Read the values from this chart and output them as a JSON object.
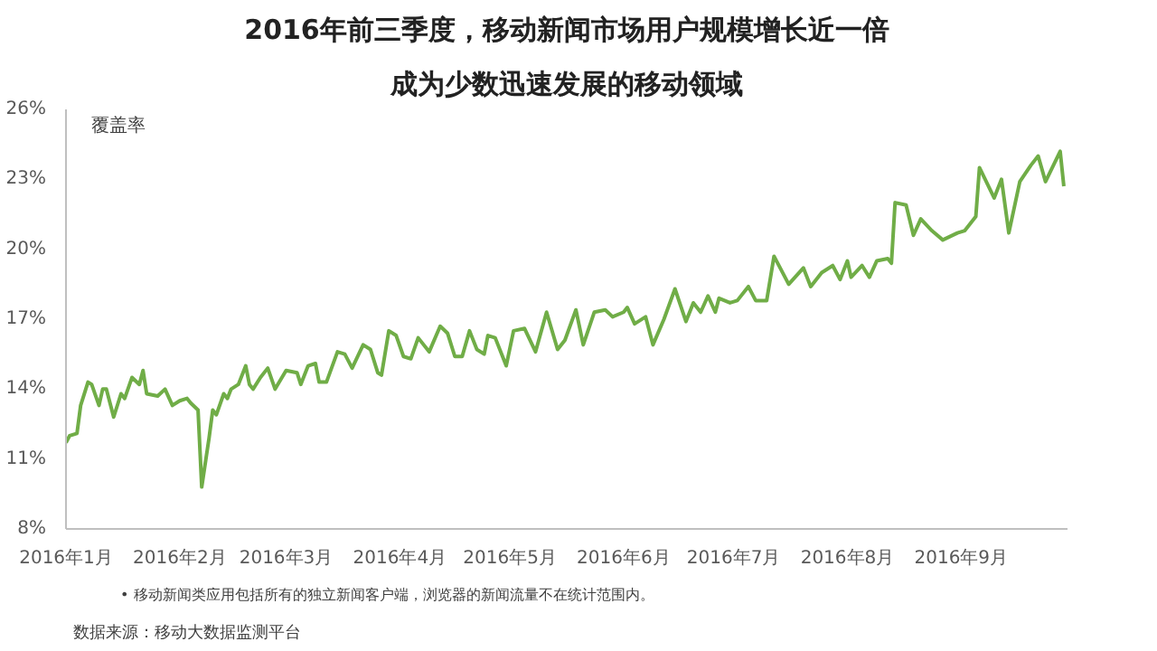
{
  "chart_data": {
    "type": "line",
    "title": "2016年前三季度，移动新闻市场用户规模增长近一倍",
    "subtitle": "成为少数迅速发展的移动领域",
    "ylabel": "覆盖率",
    "x": [
      "2016-01-01",
      "2016-01-02",
      "2016-01-04",
      "2016-01-05",
      "2016-01-07",
      "2016-01-08",
      "2016-01-10",
      "2016-01-11",
      "2016-01-12",
      "2016-01-14",
      "2016-01-16",
      "2016-01-17",
      "2016-01-19",
      "2016-01-21",
      "2016-01-22",
      "2016-01-23",
      "2016-01-26",
      "2016-01-28",
      "2016-01-30",
      "2016-02-01",
      "2016-02-03",
      "2016-02-04",
      "2016-02-06",
      "2016-02-07",
      "2016-02-09",
      "2016-02-10",
      "2016-02-11",
      "2016-02-13",
      "2016-02-14",
      "2016-02-15",
      "2016-02-17",
      "2016-02-19",
      "2016-02-20",
      "2016-02-21",
      "2016-02-23",
      "2016-02-25",
      "2016-02-27",
      "2016-03-01",
      "2016-03-04",
      "2016-03-05",
      "2016-03-07",
      "2016-03-09",
      "2016-03-10",
      "2016-03-12",
      "2016-03-15",
      "2016-03-17",
      "2016-03-19",
      "2016-03-22",
      "2016-03-24",
      "2016-03-26",
      "2016-03-27",
      "2016-03-29",
      "2016-03-31",
      "2016-04-02",
      "2016-04-04",
      "2016-04-06",
      "2016-04-09",
      "2016-04-12",
      "2016-04-14",
      "2016-04-16",
      "2016-04-18",
      "2016-04-20",
      "2016-04-22",
      "2016-04-24",
      "2016-04-25",
      "2016-04-27",
      "2016-04-30",
      "2016-05-02",
      "2016-05-05",
      "2016-05-08",
      "2016-05-11",
      "2016-05-14",
      "2016-05-16",
      "2016-05-19",
      "2016-05-21",
      "2016-05-24",
      "2016-05-27",
      "2016-05-29",
      "2016-06-01",
      "2016-06-02",
      "2016-06-04",
      "2016-06-07",
      "2016-06-09",
      "2016-06-12",
      "2016-06-15",
      "2016-06-18",
      "2016-06-20",
      "2016-06-22",
      "2016-06-24",
      "2016-06-26",
      "2016-06-27",
      "2016-06-30",
      "2016-07-02",
      "2016-07-05",
      "2016-07-07",
      "2016-07-10",
      "2016-07-12",
      "2016-07-16",
      "2016-07-20",
      "2016-07-22",
      "2016-07-25",
      "2016-07-28",
      "2016-07-30",
      "2016-08-01",
      "2016-08-02",
      "2016-08-05",
      "2016-08-07",
      "2016-08-09",
      "2016-08-12",
      "2016-08-13",
      "2016-08-14",
      "2016-08-17",
      "2016-08-19",
      "2016-08-21",
      "2016-08-24",
      "2016-08-27",
      "2016-08-31",
      "2016-09-02",
      "2016-09-05",
      "2016-09-06",
      "2016-09-10",
      "2016-09-12",
      "2016-09-14",
      "2016-09-17",
      "2016-09-20",
      "2016-09-22",
      "2016-09-24",
      "2016-09-28",
      "2016-09-29"
    ],
    "series": [
      {
        "color": "#70ad47",
        "values": [
          11.7,
          12.0,
          12.1,
          13.3,
          14.3,
          14.2,
          13.3,
          14.0,
          14.0,
          12.8,
          13.8,
          13.6,
          14.5,
          14.2,
          14.8,
          13.8,
          13.7,
          14.0,
          13.3,
          13.5,
          13.6,
          13.4,
          13.1,
          9.8,
          11.9,
          13.1,
          12.9,
          13.8,
          13.6,
          14.0,
          14.2,
          15.0,
          14.2,
          14.0,
          14.5,
          14.9,
          14.0,
          14.8,
          14.7,
          14.2,
          15.0,
          15.1,
          14.3,
          14.3,
          15.6,
          15.5,
          14.9,
          15.9,
          15.7,
          14.7,
          14.6,
          16.5,
          16.3,
          15.4,
          15.3,
          16.2,
          15.6,
          16.7,
          16.4,
          15.4,
          15.4,
          16.5,
          15.7,
          15.5,
          16.3,
          16.2,
          15.0,
          16.5,
          16.6,
          15.6,
          17.3,
          15.7,
          16.1,
          17.4,
          15.9,
          17.3,
          17.4,
          17.1,
          17.3,
          17.5,
          16.8,
          17.1,
          15.9,
          17.0,
          18.3,
          16.9,
          17.7,
          17.3,
          18.0,
          17.3,
          17.9,
          17.7,
          17.8,
          18.4,
          17.8,
          17.8,
          19.7,
          18.5,
          19.2,
          18.4,
          19.0,
          19.3,
          18.7,
          19.5,
          18.8,
          19.3,
          18.8,
          19.5,
          19.6,
          19.4,
          22.0,
          21.9,
          20.6,
          21.3,
          20.8,
          20.4,
          20.7,
          20.8,
          21.4,
          23.5,
          22.2,
          23.0,
          20.7,
          22.9,
          23.6,
          24.0,
          22.9,
          24.2,
          22.7
        ]
      }
    ],
    "xlim": [
      "2016-01-01",
      "2016-09-30"
    ],
    "xticks": [
      {
        "value": "2016-01-01",
        "label": "2016年1月"
      },
      {
        "value": "2016-02-01",
        "label": "2016年2月"
      },
      {
        "value": "2016-03-01",
        "label": "2016年3月"
      },
      {
        "value": "2016-04-01",
        "label": "2016年4月"
      },
      {
        "value": "2016-05-01",
        "label": "2016年5月"
      },
      {
        "value": "2016-06-01",
        "label": "2016年6月"
      },
      {
        "value": "2016-07-01",
        "label": "2016年7月"
      },
      {
        "value": "2016-08-01",
        "label": "2016年8月"
      },
      {
        "value": "2016-09-01",
        "label": "2016年9月"
      }
    ],
    "ylim": [
      8,
      26
    ],
    "yticks": [
      {
        "value": 8,
        "label": "8%"
      },
      {
        "value": 11,
        "label": "11%"
      },
      {
        "value": 14,
        "label": "14%"
      },
      {
        "value": 17,
        "label": "17%"
      },
      {
        "value": 20,
        "label": "20%"
      },
      {
        "value": 23,
        "label": "23%"
      },
      {
        "value": 26,
        "label": "26%"
      }
    ],
    "grid": false,
    "annotations": [
      "•     移动新闻类应用包括所有的独立新闻客户端，浏览器的新闻流量不在统计范围内。",
      "数据来源：移动大数据监测平台"
    ]
  }
}
